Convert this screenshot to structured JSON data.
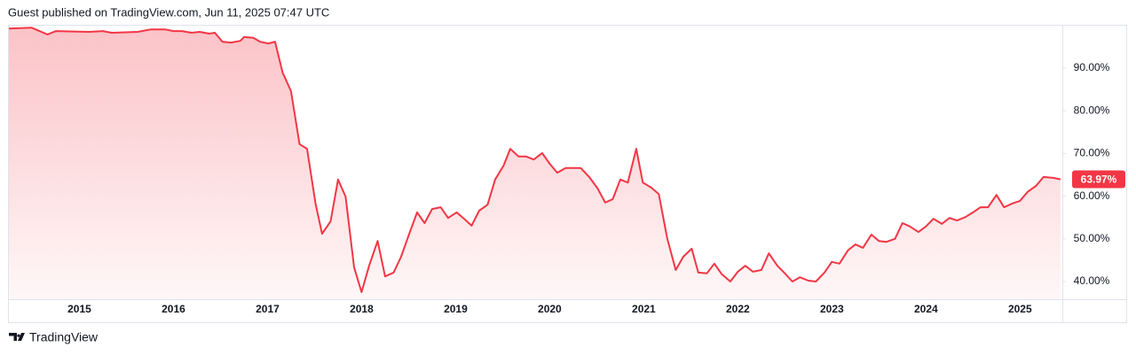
{
  "header": {
    "text": "Guest published on TradingView.com, Jun 11, 2025 07:47 UTC"
  },
  "footer": {
    "brand": "TradingView"
  },
  "chart_data": {
    "type": "area",
    "color": "#f23645",
    "x": [
      2014.25,
      2014.49,
      2014.66,
      2014.75,
      2015.1,
      2015.25,
      2015.34,
      2015.62,
      2015.76,
      2015.91,
      2016.0,
      2016.09,
      2016.19,
      2016.28,
      2016.38,
      2016.44,
      2016.52,
      2016.61,
      2016.71,
      2016.75,
      2016.85,
      2016.92,
      2017.01,
      2017.08,
      2017.16,
      2017.25,
      2017.34,
      2017.42,
      2017.51,
      2017.58,
      2017.67,
      2017.75,
      2017.83,
      2017.92,
      2018.0,
      2018.08,
      2018.17,
      2018.25,
      2018.34,
      2018.42,
      2018.51,
      2018.59,
      2018.67,
      2018.75,
      2018.84,
      2018.92,
      2019.01,
      2019.08,
      2019.17,
      2019.25,
      2019.34,
      2019.42,
      2019.51,
      2019.58,
      2019.67,
      2019.75,
      2019.83,
      2019.92,
      2020.0,
      2020.08,
      2020.17,
      2020.33,
      2020.42,
      2020.51,
      2020.59,
      2020.67,
      2020.75,
      2020.83,
      2020.92,
      2020.99,
      2021.08,
      2021.16,
      2021.25,
      2021.34,
      2021.42,
      2021.51,
      2021.58,
      2021.67,
      2021.75,
      2021.83,
      2021.92,
      2022.0,
      2022.08,
      2022.16,
      2022.25,
      2022.33,
      2022.42,
      2022.5,
      2022.58,
      2022.66,
      2022.75,
      2022.83,
      2022.92,
      2023.0,
      2023.08,
      2023.17,
      2023.25,
      2023.33,
      2023.42,
      2023.5,
      2023.58,
      2023.67,
      2023.75,
      2023.83,
      2023.92,
      2024.0,
      2024.08,
      2024.17,
      2024.25,
      2024.33,
      2024.42,
      2024.5,
      2024.58,
      2024.66,
      2024.75,
      2024.83,
      2024.92,
      2025.0,
      2025.08,
      2025.17,
      2025.25,
      2025.35,
      2025.43
    ],
    "values": [
      99.3,
      99.5,
      97.9,
      98.7,
      98.5,
      98.7,
      98.3,
      98.5,
      99.1,
      99.1,
      98.7,
      98.7,
      98.3,
      98.5,
      98.1,
      98.3,
      96.2,
      96.0,
      96.4,
      97.3,
      97.1,
      96.2,
      95.8,
      96.2,
      89.0,
      84.6,
      72.2,
      71.1,
      58.3,
      51.2,
      54.1,
      63.9,
      59.9,
      43.3,
      37.5,
      43.7,
      49.5,
      41.2,
      42.1,
      45.8,
      51.4,
      56.2,
      53.7,
      57.0,
      57.4,
      54.9,
      56.2,
      54.9,
      53.1,
      56.6,
      58.0,
      63.9,
      67.2,
      71.1,
      69.3,
      69.3,
      68.6,
      70.1,
      67.6,
      65.5,
      66.6,
      66.6,
      64.5,
      61.8,
      58.5,
      59.3,
      63.9,
      63.2,
      71.1,
      63.2,
      62.0,
      60.5,
      50.0,
      42.7,
      45.8,
      47.7,
      42.1,
      41.9,
      44.2,
      41.7,
      40.0,
      42.3,
      43.7,
      42.3,
      42.7,
      46.6,
      43.7,
      41.9,
      40.0,
      41.0,
      40.2,
      40.0,
      42.1,
      44.6,
      44.2,
      47.3,
      48.7,
      47.9,
      51.0,
      49.5,
      49.3,
      50.0,
      53.7,
      52.9,
      51.6,
      52.9,
      54.7,
      53.5,
      54.9,
      54.3,
      55.1,
      56.2,
      57.4,
      57.4,
      60.3,
      57.4,
      58.3,
      58.9,
      61.0,
      62.4,
      64.5,
      64.3,
      63.97
    ],
    "xlim": [
      2014.25,
      2025.45
    ],
    "xticks": [
      2015,
      2016,
      2017,
      2018,
      2019,
      2020,
      2021,
      2022,
      2023,
      2024,
      2025
    ],
    "ylim": [
      35.85,
      100.17
    ],
    "yticks": [
      {
        "value": 40,
        "label": "40.00%"
      },
      {
        "value": 50,
        "label": "50.00%"
      },
      {
        "value": 60,
        "label": "60.00%"
      },
      {
        "value": 70,
        "label": "70.00%"
      },
      {
        "value": 80,
        "label": "80.00%"
      },
      {
        "value": 90,
        "label": "90.00%"
      }
    ],
    "current_value": {
      "value": 63.97,
      "label": "63.97%"
    },
    "grid": false
  }
}
